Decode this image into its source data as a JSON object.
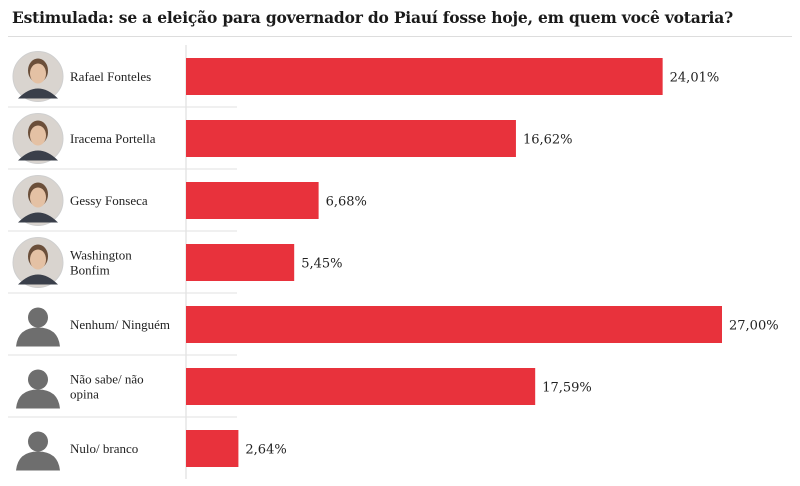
{
  "chart_data": {
    "type": "bar",
    "orientation": "horizontal",
    "title": "Estimulada: se a eleição para governador do Piauí fosse hoje, em quem você votaria?",
    "categories": [
      "Rafael Fonteles",
      "Iracema Portella",
      "Gessy Fonseca",
      "Washington Bonfim",
      "Nenhum/ Ninguém",
      "Não sabe/ não opina",
      "Nulo/ branco"
    ],
    "category_lines": [
      [
        "Rafael Fonteles"
      ],
      [
        "Iracema Portella"
      ],
      [
        "Gessy Fonseca"
      ],
      [
        "Washington",
        "Bonfim"
      ],
      [
        "Nenhum/ Ninguém"
      ],
      [
        "Não sabe/ não",
        "opina"
      ],
      [
        "Nulo/ branco"
      ]
    ],
    "values": [
      24.01,
      16.62,
      6.68,
      5.45,
      27.0,
      17.59,
      2.64
    ],
    "value_labels": [
      "24,01%",
      "16,62%",
      "6,68%",
      "5,45%",
      "27,00%",
      "17,59%",
      "2,64%"
    ],
    "avatars": [
      "photo",
      "photo",
      "photo",
      "photo",
      "silhouette",
      "silhouette",
      "silhouette"
    ],
    "xlim": [
      0,
      27
    ],
    "bar_color": "#e8323c",
    "grid": false,
    "legend": "none"
  }
}
